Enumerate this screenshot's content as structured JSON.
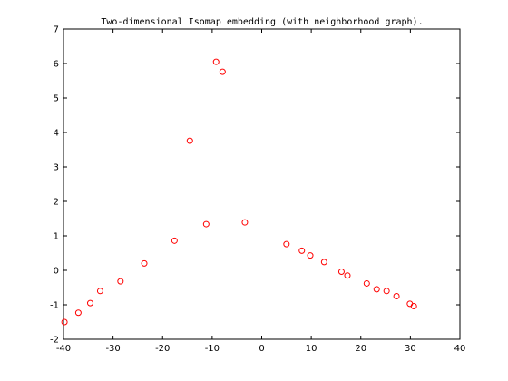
{
  "chart_data": {
    "type": "scatter",
    "title": "Two-dimensional Isomap embedding (with neighborhood graph).",
    "xlabel": "",
    "ylabel": "",
    "xlim": [
      -40,
      40
    ],
    "ylim": [
      -2,
      7
    ],
    "xticks": [
      -40,
      -30,
      -20,
      -10,
      0,
      10,
      20,
      30,
      40
    ],
    "yticks": [
      -2,
      -1,
      0,
      1,
      2,
      3,
      4,
      5,
      6,
      7
    ],
    "grid": false,
    "marker": "circle-open",
    "color": "#ff0000",
    "series": [
      {
        "points": [
          [
            -39.8,
            -1.5
          ],
          [
            -37.0,
            -1.23
          ],
          [
            -34.6,
            -0.95
          ],
          [
            -32.6,
            -0.6
          ],
          [
            -28.5,
            -0.32
          ],
          [
            -23.7,
            0.2
          ],
          [
            -17.6,
            0.86
          ],
          [
            -14.5,
            3.76
          ],
          [
            -11.2,
            1.34
          ],
          [
            -9.2,
            6.05
          ],
          [
            -7.9,
            5.76
          ],
          [
            -3.4,
            1.39
          ],
          [
            5.0,
            0.76
          ],
          [
            8.1,
            0.57
          ],
          [
            9.8,
            0.43
          ],
          [
            12.6,
            0.24
          ],
          [
            16.1,
            -0.04
          ],
          [
            17.3,
            -0.15
          ],
          [
            21.2,
            -0.38
          ],
          [
            23.2,
            -0.55
          ],
          [
            25.2,
            -0.6
          ],
          [
            27.2,
            -0.75
          ],
          [
            29.9,
            -0.97
          ],
          [
            30.7,
            -1.04
          ]
        ]
      }
    ]
  }
}
